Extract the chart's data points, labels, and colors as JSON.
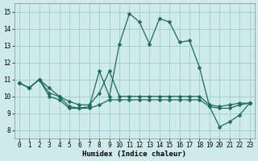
{
  "xlabel": "Humidex (Indice chaleur)",
  "bg_color": "#ceeaea",
  "grid_color": "#9dcbcb",
  "line_color": "#1e6b5a",
  "xlim": [
    -0.5,
    23.5
  ],
  "ylim": [
    7.5,
    15.5
  ],
  "xticks": [
    0,
    1,
    2,
    3,
    4,
    5,
    6,
    7,
    8,
    9,
    10,
    11,
    12,
    13,
    14,
    15,
    16,
    17,
    18,
    19,
    20,
    21,
    22,
    23
  ],
  "yticks": [
    8,
    9,
    10,
    11,
    12,
    13,
    14,
    15
  ],
  "series1_y": [
    10.8,
    10.5,
    11.0,
    10.5,
    10.0,
    9.4,
    9.3,
    9.4,
    11.5,
    10.0,
    13.1,
    14.9,
    14.4,
    13.1,
    14.6,
    14.4,
    13.2,
    13.3,
    11.7,
    9.4,
    8.2,
    8.5,
    8.9,
    9.6
  ],
  "series2_y": [
    10.8,
    10.5,
    11.0,
    10.2,
    10.0,
    9.7,
    9.5,
    9.5,
    10.2,
    11.5,
    10.0,
    10.0,
    10.0,
    10.0,
    10.0,
    10.0,
    10.0,
    10.0,
    10.0,
    9.5,
    9.4,
    9.5,
    9.6,
    9.6
  ],
  "series3_y": [
    10.8,
    10.5,
    11.0,
    10.0,
    9.8,
    9.3,
    9.3,
    9.3,
    9.5,
    9.8,
    9.8,
    9.8,
    9.8,
    9.8,
    9.8,
    9.8,
    9.8,
    9.8,
    9.8,
    9.4,
    9.3,
    9.3,
    9.5,
    9.6
  ],
  "marker_size": 2.5,
  "linewidth": 0.9,
  "xlabel_fontsize": 6.5,
  "tick_fontsize": 5.5
}
